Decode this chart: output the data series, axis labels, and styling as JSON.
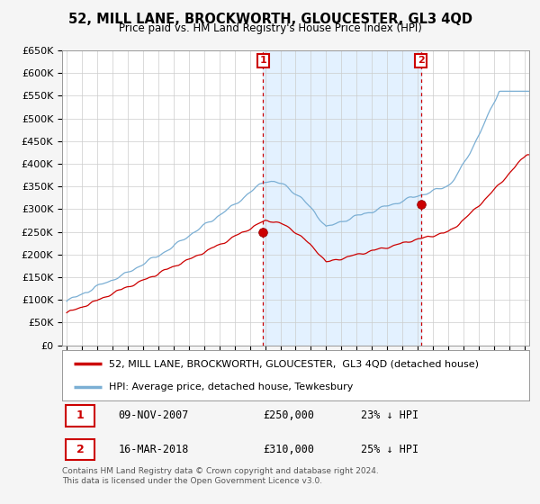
{
  "title": "52, MILL LANE, BROCKWORTH, GLOUCESTER, GL3 4QD",
  "subtitle": "Price paid vs. HM Land Registry's House Price Index (HPI)",
  "ylim": [
    0,
    650000
  ],
  "yticks": [
    0,
    50000,
    100000,
    150000,
    200000,
    250000,
    300000,
    350000,
    400000,
    450000,
    500000,
    550000,
    600000,
    650000
  ],
  "xlim_start": 1994.7,
  "xlim_end": 2025.3,
  "sale1_x": 2007.86,
  "sale1_y": 250000,
  "sale2_x": 2018.21,
  "sale2_y": 310000,
  "sale_color": "#cc0000",
  "hpi_color": "#7bafd4",
  "vline_color": "#cc0000",
  "shade_color": "#ddeeff",
  "background_color": "#f5f5f5",
  "plot_bg": "#ffffff",
  "grid_color": "#cccccc",
  "legend_label_red": "52, MILL LANE, BROCKWORTH, GLOUCESTER,  GL3 4QD (detached house)",
  "legend_label_blue": "HPI: Average price, detached house, Tewkesbury",
  "note1_date": "09-NOV-2007",
  "note1_price": "£250,000",
  "note1_hpi": "23% ↓ HPI",
  "note2_date": "16-MAR-2018",
  "note2_price": "£310,000",
  "note2_hpi": "25% ↓ HPI",
  "footer": "Contains HM Land Registry data © Crown copyright and database right 2024.\nThis data is licensed under the Open Government Licence v3.0."
}
